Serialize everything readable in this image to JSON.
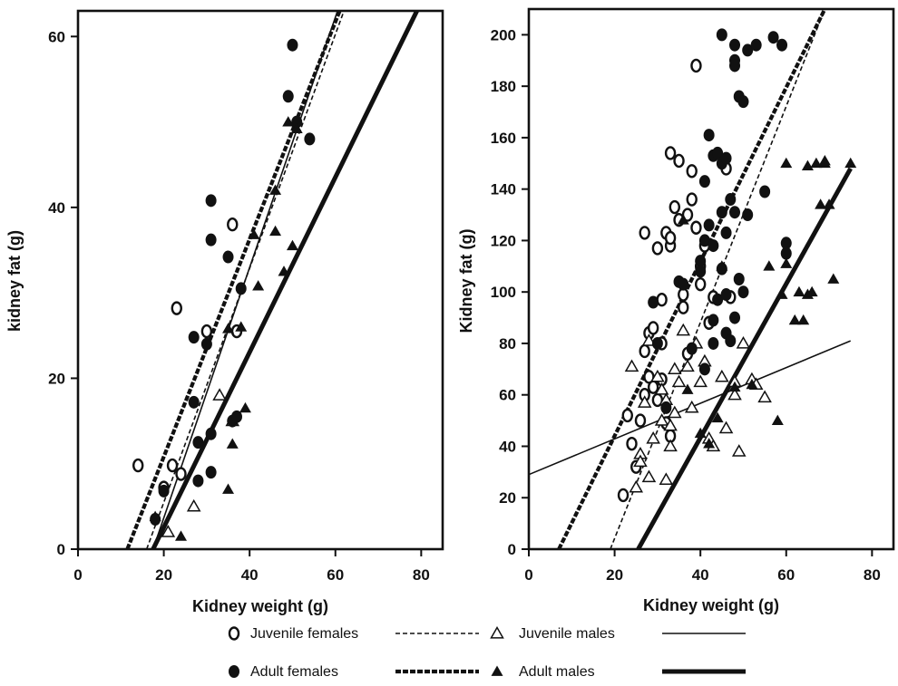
{
  "chart_data": [
    {
      "type": "scatter",
      "xlabel": "Kidney weight (g)",
      "ylabel": "kidney fat (g)",
      "xlim": [
        0,
        85
      ],
      "ylim": [
        0,
        63
      ],
      "xticks": [
        0,
        20,
        40,
        60,
        80
      ],
      "yticks": [
        0,
        20,
        40,
        60
      ],
      "series": [
        {
          "name": "Juvenile females",
          "marker": "open-circle",
          "points": [
            [
              14,
              9.8
            ],
            [
              22,
              9.8
            ],
            [
              24,
              8.8
            ],
            [
              20,
              7.2
            ],
            [
              23,
              28.2
            ],
            [
              30,
              25.5
            ],
            [
              36,
              38
            ],
            [
              37,
              25.5
            ]
          ]
        },
        {
          "name": "Juvenile males",
          "marker": "open-triangle",
          "points": [
            [
              21,
              2
            ],
            [
              27,
              5
            ],
            [
              33,
              18
            ],
            [
              36,
              15
            ]
          ]
        },
        {
          "name": "Adult females",
          "marker": "filled-circle",
          "points": [
            [
              18,
              3.5
            ],
            [
              20,
              6.8
            ],
            [
              27,
              24.8
            ],
            [
              27,
              17.2
            ],
            [
              28,
              12.5
            ],
            [
              28,
              8
            ],
            [
              30,
              24
            ],
            [
              31,
              13.5
            ],
            [
              31,
              9
            ],
            [
              31,
              40.8
            ],
            [
              31,
              36.2
            ],
            [
              35,
              34.2
            ],
            [
              36,
              15
            ],
            [
              37,
              15.5
            ],
            [
              38,
              30.5
            ],
            [
              49,
              53
            ],
            [
              50,
              59
            ],
            [
              51,
              50
            ],
            [
              54,
              48
            ]
          ]
        },
        {
          "name": "Adult males",
          "marker": "filled-triangle",
          "points": [
            [
              18,
              3.8
            ],
            [
              24,
              1.5
            ],
            [
              35,
              25.8
            ],
            [
              35,
              7
            ],
            [
              36,
              12.3
            ],
            [
              38,
              26
            ],
            [
              39,
              16.5
            ],
            [
              41,
              36.8
            ],
            [
              42,
              30.8
            ],
            [
              46,
              42
            ],
            [
              46,
              37.2
            ],
            [
              48,
              32.5
            ],
            [
              49,
              50
            ],
            [
              50,
              35.5
            ],
            [
              51,
              49.2
            ]
          ]
        }
      ],
      "fits": [
        {
          "name": "Juvenile females",
          "style": "thin-dashed",
          "x": [
            16,
            62
          ],
          "y": [
            0,
            63
          ]
        },
        {
          "name": "Adult females",
          "style": "thick-dashed",
          "x": [
            11.5,
            61
          ],
          "y": [
            0,
            63
          ]
        },
        {
          "name": "Juvenile males",
          "style": "thin-solid",
          "x": [
            17.5,
            60.5
          ],
          "y": [
            0,
            63
          ]
        },
        {
          "name": "Adult males",
          "style": "thick-solid",
          "x": [
            17.5,
            79
          ],
          "y": [
            0,
            63
          ]
        }
      ]
    },
    {
      "type": "scatter",
      "xlabel": "Kidney weight (g)",
      "ylabel": "Kidney fat (g)",
      "xlim": [
        0,
        85
      ],
      "ylim": [
        0,
        210
      ],
      "xticks": [
        0,
        20,
        40,
        60,
        80
      ],
      "yticks": [
        0,
        20,
        40,
        60,
        80,
        100,
        120,
        140,
        160,
        180,
        200
      ],
      "series": [
        {
          "name": "Juvenile females",
          "marker": "open-circle",
          "points": [
            [
              22,
              21
            ],
            [
              23,
              52
            ],
            [
              24,
              41
            ],
            [
              25,
              32
            ],
            [
              26,
              50
            ],
            [
              27,
              123
            ],
            [
              27,
              77
            ],
            [
              27,
              60
            ],
            [
              28,
              67
            ],
            [
              28,
              84
            ],
            [
              29,
              86
            ],
            [
              29,
              63
            ],
            [
              30,
              58
            ],
            [
              30,
              117
            ],
            [
              31,
              97
            ],
            [
              31,
              80
            ],
            [
              31,
              66
            ],
            [
              32,
              123
            ],
            [
              32,
              49
            ],
            [
              33,
              154
            ],
            [
              33,
              118
            ],
            [
              33,
              121
            ],
            [
              33,
              44
            ],
            [
              34,
              133
            ],
            [
              35,
              128
            ],
            [
              35,
              151
            ],
            [
              36,
              99
            ],
            [
              36,
              94
            ],
            [
              37,
              130
            ],
            [
              37,
              76
            ],
            [
              38,
              147
            ],
            [
              38,
              136
            ],
            [
              39,
              188
            ],
            [
              39,
              125
            ],
            [
              40,
              110
            ],
            [
              40,
              103
            ],
            [
              41,
              118
            ],
            [
              42,
              88
            ],
            [
              43,
              98
            ],
            [
              46,
              148
            ],
            [
              47,
              98
            ]
          ]
        },
        {
          "name": "Juvenile males",
          "marker": "open-triangle",
          "points": [
            [
              24,
              71
            ],
            [
              25,
              24
            ],
            [
              26,
              37
            ],
            [
              26,
              34
            ],
            [
              27,
              57
            ],
            [
              28,
              28
            ],
            [
              28,
              81
            ],
            [
              29,
              43
            ],
            [
              30,
              67
            ],
            [
              31,
              50
            ],
            [
              31,
              62
            ],
            [
              32,
              27
            ],
            [
              32,
              58
            ],
            [
              33,
              48
            ],
            [
              33,
              40
            ],
            [
              34,
              70
            ],
            [
              34,
              53
            ],
            [
              35,
              65
            ],
            [
              36,
              85
            ],
            [
              37,
              71
            ],
            [
              38,
              55
            ],
            [
              39,
              80
            ],
            [
              40,
              65
            ],
            [
              41,
              73
            ],
            [
              42,
              43
            ],
            [
              43,
              40
            ],
            [
              45,
              67
            ],
            [
              46,
              47
            ],
            [
              48,
              60
            ],
            [
              48,
              65
            ],
            [
              49,
              38
            ],
            [
              50,
              80
            ],
            [
              52,
              66
            ],
            [
              53,
              64
            ],
            [
              55,
              59
            ]
          ]
        },
        {
          "name": "Adult females",
          "marker": "filled-circle",
          "points": [
            [
              29,
              96
            ],
            [
              30,
              80
            ],
            [
              32,
              55
            ],
            [
              35,
              104
            ],
            [
              36,
              103
            ],
            [
              38,
              78
            ],
            [
              40,
              112
            ],
            [
              40,
              108
            ],
            [
              41,
              143
            ],
            [
              41,
              120
            ],
            [
              41,
              70
            ],
            [
              42,
              161
            ],
            [
              42,
              126
            ],
            [
              43,
              153
            ],
            [
              43,
              118
            ],
            [
              43,
              89
            ],
            [
              43,
              80
            ],
            [
              44,
              154
            ],
            [
              44,
              97
            ],
            [
              45,
              200
            ],
            [
              45,
              150
            ],
            [
              45,
              131
            ],
            [
              45,
              109
            ],
            [
              46,
              152
            ],
            [
              46,
              123
            ],
            [
              46,
              99
            ],
            [
              46,
              84
            ],
            [
              47,
              136
            ],
            [
              47,
              81
            ],
            [
              48,
              196
            ],
            [
              48,
              190
            ],
            [
              48,
              188
            ],
            [
              48,
              131
            ],
            [
              48,
              90
            ],
            [
              49,
              176
            ],
            [
              49,
              105
            ],
            [
              50,
              174
            ],
            [
              50,
              100
            ],
            [
              51,
              194
            ],
            [
              51,
              130
            ],
            [
              53,
              196
            ],
            [
              55,
              139
            ],
            [
              57,
              199
            ],
            [
              59,
              196
            ],
            [
              60,
              119
            ],
            [
              60,
              115
            ]
          ]
        },
        {
          "name": "Adult males",
          "marker": "filled-triangle",
          "points": [
            [
              36,
              128
            ],
            [
              37,
              62
            ],
            [
              40,
              45
            ],
            [
              42,
              41
            ],
            [
              44,
              51
            ],
            [
              45,
              110
            ],
            [
              48,
              63
            ],
            [
              52,
              64
            ],
            [
              56,
              110
            ],
            [
              58,
              50
            ],
            [
              59,
              99
            ],
            [
              60,
              111
            ],
            [
              60,
              150
            ],
            [
              62,
              89
            ],
            [
              63,
              100
            ],
            [
              64,
              89
            ],
            [
              65,
              99
            ],
            [
              65,
              149
            ],
            [
              66,
              100
            ],
            [
              67,
              150
            ],
            [
              68,
              134
            ],
            [
              69,
              150
            ],
            [
              69,
              151
            ],
            [
              70,
              134
            ],
            [
              71,
              105
            ],
            [
              75,
              150
            ]
          ]
        }
      ],
      "fits": [
        {
          "name": "Juvenile females",
          "style": "thin-dashed",
          "x": [
            19,
            69
          ],
          "y": [
            0,
            210
          ]
        },
        {
          "name": "Adult females",
          "style": "thick-dashed",
          "x": [
            7,
            69
          ],
          "y": [
            0,
            210
          ]
        },
        {
          "name": "Juvenile males",
          "style": "thin-solid",
          "x": [
            0,
            75
          ],
          "y": [
            29,
            81
          ]
        },
        {
          "name": "Adult males",
          "style": "thick-solid",
          "x": [
            25.5,
            75
          ],
          "y": [
            0,
            148
          ]
        }
      ]
    }
  ],
  "legend": {
    "items": [
      {
        "label": "Juvenile females",
        "marker": "open-circle",
        "line": "thin-dashed"
      },
      {
        "label": "Juvenile males",
        "marker": "open-triangle",
        "line": "thin-solid"
      },
      {
        "label": "Adult females",
        "marker": "filled-circle",
        "line": "thick-dashed"
      },
      {
        "label": "Adult males",
        "marker": "filled-triangle",
        "line": "thick-solid"
      }
    ]
  },
  "colors": {
    "ink": "#111111",
    "background": "#ffffff"
  }
}
